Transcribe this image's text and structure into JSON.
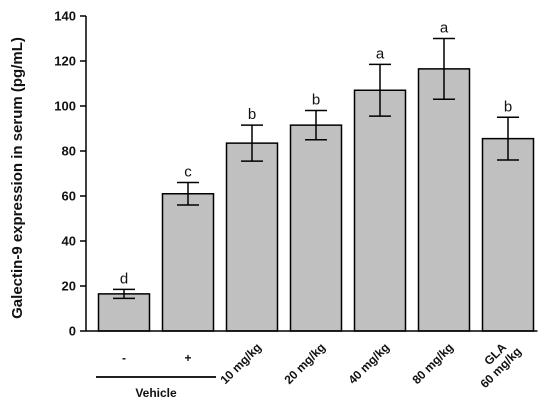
{
  "chart_data": {
    "type": "bar",
    "ylabel": "Galectin-9 expression in serum (pg/mL)",
    "ylim": [
      0,
      140
    ],
    "yticks": [
      0,
      20,
      40,
      60,
      80,
      100,
      120,
      140
    ],
    "bar_color": "#c0c0c0",
    "categories": [
      {
        "label": "-",
        "rotated": false
      },
      {
        "label": "+",
        "rotated": false
      },
      {
        "label": "10 mg/kg",
        "rotated": true
      },
      {
        "label": "20 mg/kg",
        "rotated": true
      },
      {
        "label": "40 mg/kg",
        "rotated": true
      },
      {
        "label": "80 mg/kg",
        "rotated": true
      },
      {
        "label": "GLA",
        "label2": "60 mg/kg",
        "rotated": true
      }
    ],
    "values": [
      16.5,
      61,
      83.5,
      91.5,
      107,
      116.5,
      85.5
    ],
    "errors": [
      2,
      5,
      8,
      6.5,
      11.5,
      13.5,
      9.5
    ],
    "significance": [
      "d",
      "c",
      "b",
      "b",
      "a",
      "a",
      "b"
    ],
    "group_label": "Vehicle",
    "group_span": [
      0,
      1
    ]
  }
}
